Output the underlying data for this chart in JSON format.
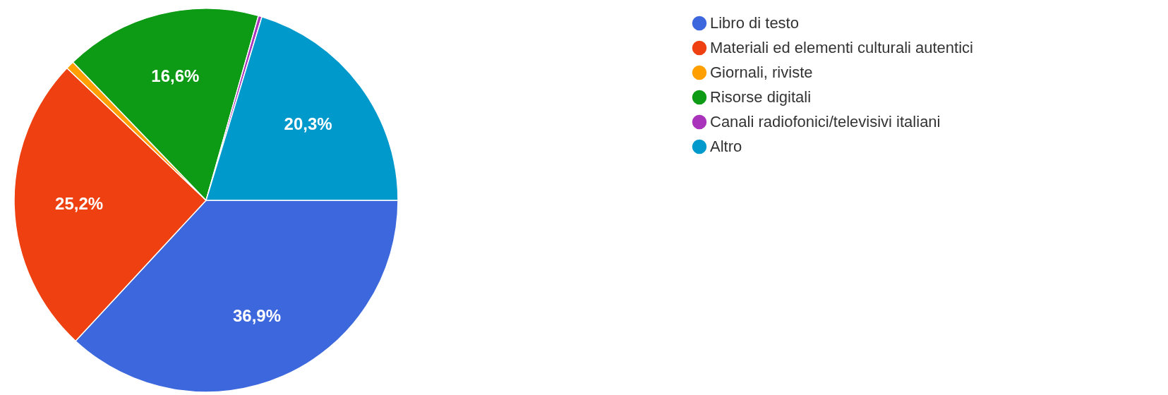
{
  "chart_data": {
    "type": "pie",
    "categories": [
      "Libro di testo",
      "Materiali ed elementi culturali autentici",
      "Giornali, riviste",
      "Risorse digitali",
      "Canali radiofonici/televisivi italiani",
      "Altro"
    ],
    "values": [
      36.9,
      25.2,
      0.7,
      16.6,
      0.3,
      20.3
    ],
    "colors": [
      "#3d68dd",
      "#ee4010",
      "#ffa000",
      "#0d9a14",
      "#aa33bb",
      "#0099cc"
    ],
    "value_labels": [
      "36,9%",
      "25,2%",
      null,
      "16,6%",
      null,
      "20,3%"
    ],
    "legend": "right"
  }
}
